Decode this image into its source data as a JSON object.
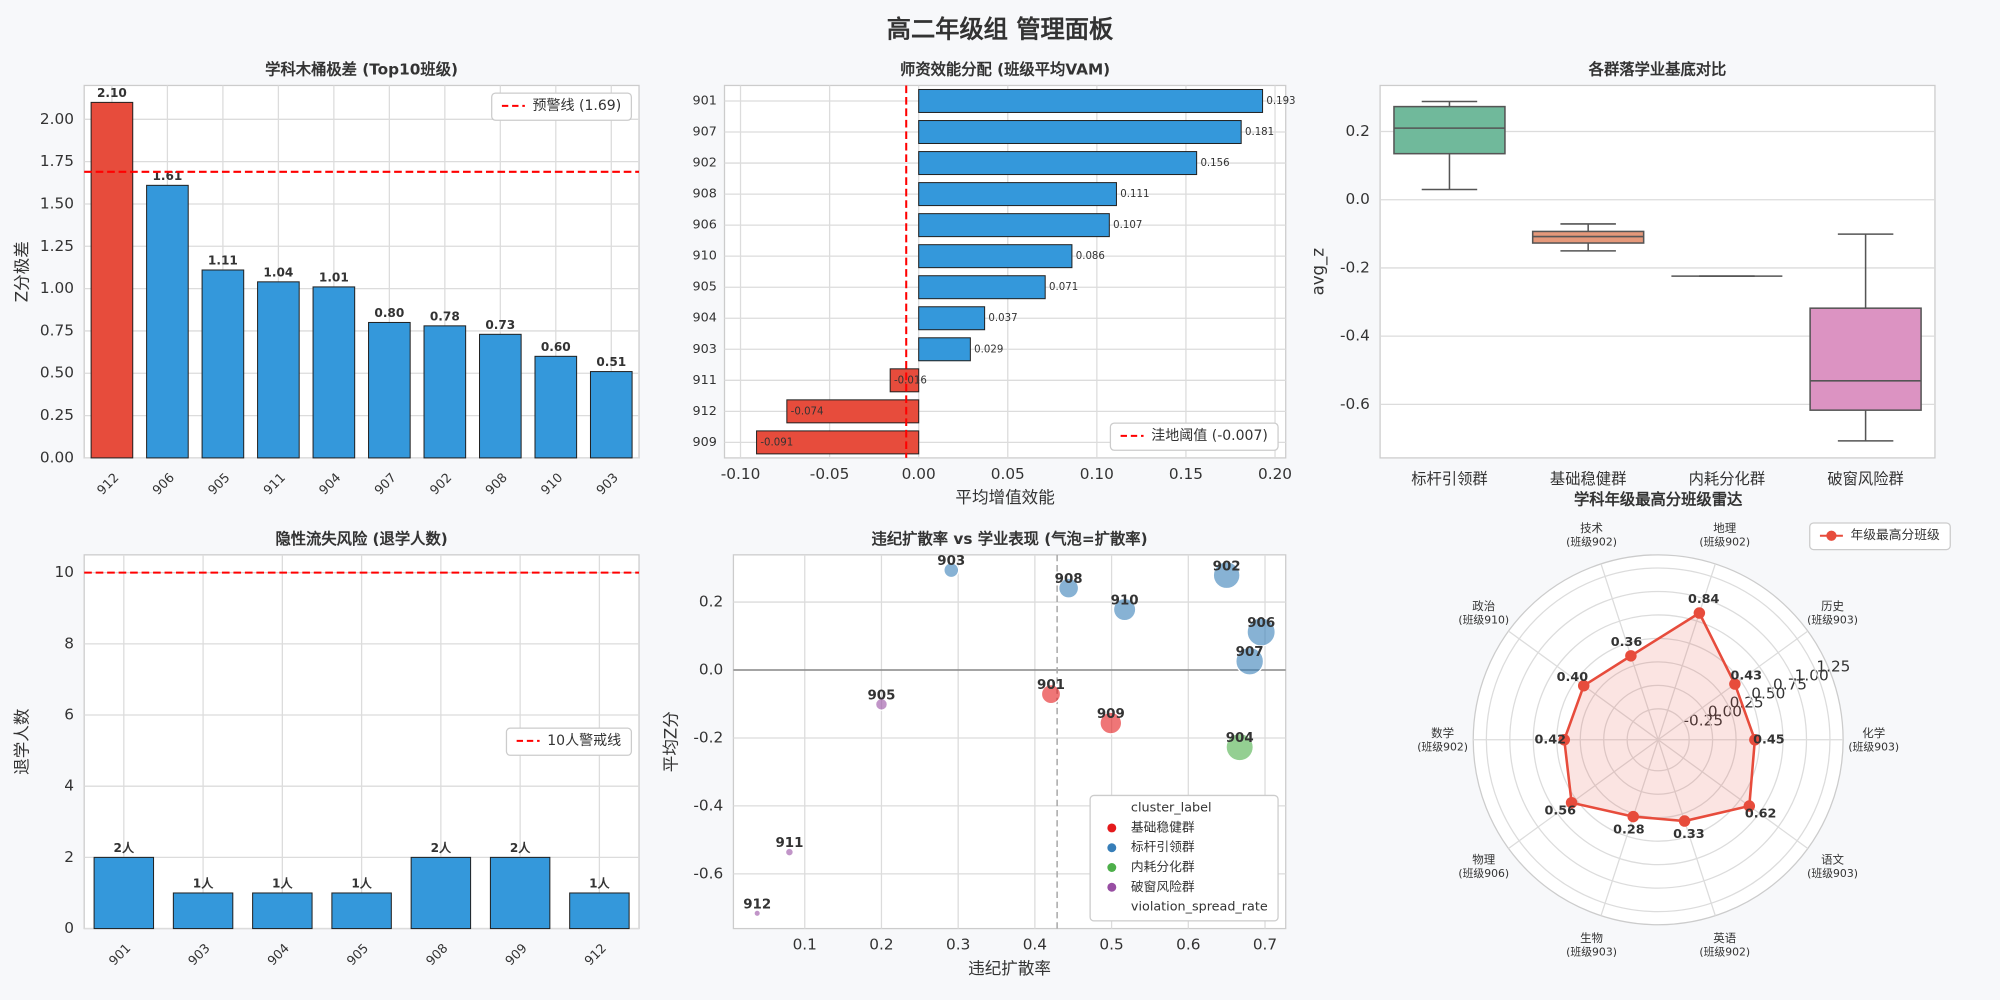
{
  "title": "高二年级组 管理面板",
  "chart_data": [
    {
      "type": "bar",
      "title": "学科木桶极差 (Top10班级)",
      "ylabel": "Z分极差",
      "categories": [
        "912",
        "906",
        "905",
        "911",
        "904",
        "907",
        "902",
        "908",
        "910",
        "903"
      ],
      "values": [
        2.1,
        1.61,
        1.11,
        1.04,
        1.01,
        0.8,
        0.78,
        0.73,
        0.6,
        0.51
      ],
      "value_labels": [
        "2.10",
        "1.61",
        "1.11",
        "1.04",
        "1.01",
        "0.80",
        "0.78",
        "0.73",
        "0.60",
        "0.51"
      ],
      "colors": [
        "#e74c3c",
        "#3498db",
        "#3498db",
        "#3498db",
        "#3498db",
        "#3498db",
        "#3498db",
        "#3498db",
        "#3498db",
        "#3498db"
      ],
      "ylim": [
        0,
        2.2
      ],
      "yticks": [
        {
          "value": 0,
          "label": "0.00"
        },
        0.25,
        {
          "value": 0.5,
          "label": "0.50"
        },
        0.75,
        {
          "value": 1,
          "label": "1.00"
        },
        1.25,
        {
          "value": 1.5,
          "label": "1.50"
        },
        1.75,
        {
          "value": 2,
          "label": "2.00"
        }
      ],
      "grid": true,
      "ref_line": {
        "value": 1.69,
        "label": "预警线 (1.69)",
        "color": "#ff0000"
      },
      "legend": "upper right"
    },
    {
      "type": "barh",
      "title": "师资效能分配 (班级平均VAM)",
      "xlabel": "平均增值效能",
      "categories": [
        "901",
        "907",
        "902",
        "908",
        "906",
        "910",
        "905",
        "904",
        "903",
        "911",
        "912",
        "909"
      ],
      "values": [
        0.193,
        0.181,
        0.156,
        0.111,
        0.107,
        0.086,
        0.071,
        0.037,
        0.029,
        -0.016,
        -0.074,
        -0.091
      ],
      "colors": [
        "#3498db",
        "#3498db",
        "#3498db",
        "#3498db",
        "#3498db",
        "#3498db",
        "#3498db",
        "#3498db",
        "#3498db",
        "#e74c3c",
        "#e74c3c",
        "#e74c3c"
      ],
      "xlim": [
        -0.109,
        0.206
      ],
      "xticks": [
        {
          "value": -0.1,
          "label": "-0.10"
        },
        -0.05,
        {
          "value": 0,
          "label": "0.00"
        },
        0.05,
        {
          "value": 0.1,
          "label": "0.10"
        },
        0.15,
        {
          "value": 0.2,
          "label": "0.20"
        }
      ],
      "grid": true,
      "ref_line": {
        "value": -0.007,
        "label": "洼地阈值 (-0.007)",
        "color": "#ff0000"
      },
      "legend": "lower right"
    },
    {
      "type": "box",
      "title": "各群落学业基底对比",
      "ylabel": "avg_z",
      "categories": [
        "标杆引领群",
        "基础稳健群",
        "内耗分化群",
        "破窗风险群"
      ],
      "boxes": [
        {
          "min": 0.03,
          "q1": 0.135,
          "median": 0.21,
          "q3": 0.273,
          "max": 0.288
        },
        {
          "min": -0.15,
          "q1": -0.127,
          "median": -0.108,
          "q3": -0.093,
          "max": -0.071
        },
        {
          "min": -0.224,
          "q1": -0.224,
          "median": -0.224,
          "q3": -0.224,
          "max": -0.224
        },
        {
          "min": -0.707,
          "q1": -0.617,
          "median": -0.531,
          "q3": -0.318,
          "max": -0.101
        }
      ],
      "colors": [
        "#70b99b",
        "#e5987a",
        "#8da0cb",
        "#dc93c2"
      ],
      "ylim": [
        -0.757,
        0.335
      ],
      "yticks": [
        0.2,
        {
          "value": 0,
          "label": "0.0"
        },
        -0.2,
        -0.4,
        -0.6
      ],
      "grid": "y"
    },
    {
      "type": "bar",
      "title": "隐性流失风险 (退学人数)",
      "ylabel": "退学人数",
      "categories": [
        "901",
        "903",
        "904",
        "905",
        "908",
        "909",
        "912"
      ],
      "values": [
        2,
        1,
        1,
        1,
        2,
        2,
        1
      ],
      "value_labels": [
        "2人",
        "1人",
        "1人",
        "1人",
        "2人",
        "2人",
        "1人"
      ],
      "colors": [
        "#3498db",
        "#3498db",
        "#3498db",
        "#3498db",
        "#3498db",
        "#3498db",
        "#3498db"
      ],
      "ylim": [
        0,
        10.5
      ],
      "yticks": [
        0,
        2,
        4,
        6,
        8,
        10
      ],
      "grid": true,
      "ref_line": {
        "value": 10,
        "label": "10人警戒线",
        "color": "#ff0000"
      },
      "legend": "center right"
    },
    {
      "type": "scatter",
      "title": "违纪扩散率 vs 学业表现 (气泡=扩散率)",
      "xlabel": "违纪扩散率",
      "ylabel": "平均Z分",
      "legend_title": "cluster_label",
      "size_label": "violation_spread_rate",
      "series": [
        {
          "name": "基础稳健群",
          "color": "#e41a1c",
          "labels": [
            "901",
            "909"
          ],
          "x": [
            0.421,
            0.499
          ],
          "values": [
            -0.071,
            -0.156
          ]
        },
        {
          "name": "标杆引领群",
          "color": "#377eb8",
          "labels": [
            "903",
            "908",
            "902",
            "910",
            "906",
            "907"
          ],
          "x": [
            0.291,
            0.444,
            0.65,
            0.517,
            0.695,
            0.68
          ],
          "values": [
            0.294,
            0.241,
            0.279,
            0.178,
            0.112,
            0.026
          ]
        },
        {
          "name": "内耗分化群",
          "color": "#4daf4a",
          "labels": [
            "904"
          ],
          "x": [
            0.667
          ],
          "values": [
            -0.227
          ]
        },
        {
          "name": "破窗风险群",
          "color": "#984ea3",
          "labels": [
            "905",
            "911",
            "912"
          ],
          "x": [
            0.2,
            0.08,
            0.038
          ],
          "values": [
            -0.101,
            -0.536,
            -0.716
          ]
        }
      ],
      "xlim": [
        0.007,
        0.727
      ],
      "ylim": [
        -0.761,
        0.339
      ],
      "xticks": [
        0.1,
        0.2,
        0.3,
        0.4,
        0.5,
        0.6,
        0.7
      ],
      "yticks": [
        0.2,
        {
          "value": 0,
          "label": "0.0"
        },
        -0.2,
        -0.4,
        -0.6
      ],
      "vline": 0.429,
      "zero_line": true,
      "grid": true,
      "legend": "lower right"
    },
    {
      "type": "radar",
      "title": "学科年级最高分班级雷达",
      "categories": [
        "化学",
        "历史",
        "地理",
        "技术",
        "政治",
        "数学",
        "物理",
        "生物",
        "英语",
        "语文"
      ],
      "category_notes": [
        "(班级903)",
        "(班级903)",
        "(班级902)",
        "(班级902)",
        "(班级910)",
        "(班级902)",
        "(班级906)",
        "(班级903)",
        "(班级902)",
        "(班级903)"
      ],
      "series": [
        {
          "name": "年级最高分班级",
          "color": "#e74c3c",
          "values": [
            0.45,
            0.43,
            0.84,
            0.36,
            0.4,
            0.42,
            0.56,
            0.28,
            0.33,
            0.62
          ],
          "value_labels": [
            "0.45",
            "0.43",
            "0.84",
            "0.36",
            "0.40",
            "0.42",
            "0.56",
            "0.28",
            "0.33",
            "0.62"
          ]
        }
      ],
      "rlim": [
        -0.58,
        1.39
      ],
      "rticks": [
        -0.25,
        {
          "value": 0,
          "label": "0.00"
        },
        0.25,
        {
          "value": 0.5,
          "label": "0.50"
        },
        0.75,
        {
          "value": 1,
          "label": "1.00"
        },
        1.25
      ],
      "legend": "upper right"
    }
  ]
}
